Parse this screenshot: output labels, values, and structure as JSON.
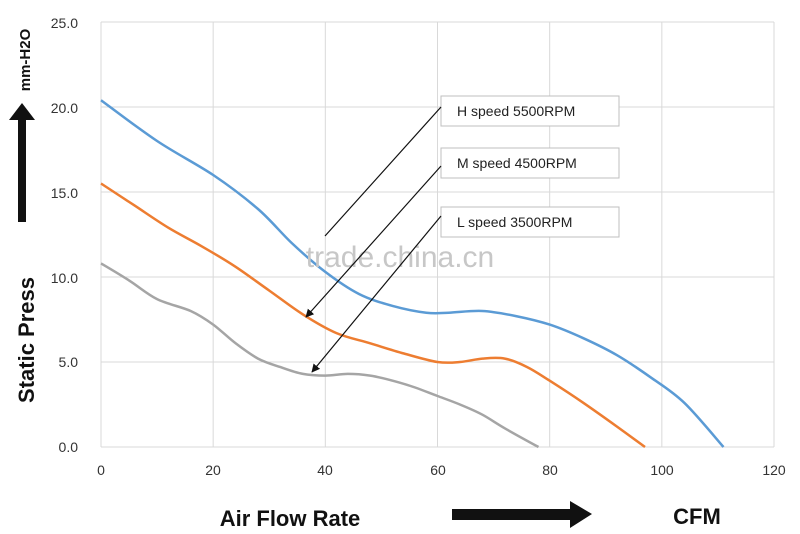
{
  "chart_data": {
    "type": "line",
    "title": "",
    "xlabel": "Air  Flow  Rate",
    "x_unit": "CFM",
    "ylabel": "Static  Press",
    "y_unit": "mm-H2O",
    "xlim": [
      0,
      120
    ],
    "ylim": [
      0,
      25
    ],
    "x_ticks": [
      "0",
      "20",
      "40",
      "60",
      "80",
      "100",
      "120"
    ],
    "y_ticks": [
      "0.0",
      "5.0",
      "10.0",
      "15.0",
      "20.0",
      "25.0"
    ],
    "grid": true,
    "series": [
      {
        "name": "H speed  5500RPM",
        "color": "#5b9bd5",
        "x": [
          0,
          10,
          20,
          28,
          34,
          40,
          46,
          52,
          58,
          62,
          68,
          74,
          80,
          86,
          92,
          98,
          104,
          111
        ],
        "y": [
          20.4,
          18.0,
          16.0,
          14.0,
          12.0,
          10.3,
          9.0,
          8.3,
          7.9,
          7.9,
          8.0,
          7.7,
          7.2,
          6.4,
          5.4,
          4.1,
          2.6,
          0.0
        ]
      },
      {
        "name": "M speed  4500RPM",
        "color": "#ed7d31",
        "x": [
          0,
          6,
          12,
          18,
          24,
          30,
          36,
          42,
          48,
          54,
          60,
          64,
          68,
          72,
          76,
          80,
          86,
          92,
          97
        ],
        "y": [
          15.5,
          14.2,
          12.9,
          11.8,
          10.6,
          9.2,
          7.8,
          6.7,
          6.1,
          5.5,
          5.0,
          5.0,
          5.2,
          5.2,
          4.7,
          3.9,
          2.6,
          1.2,
          0.0
        ]
      },
      {
        "name": "L speed  3500RPM",
        "color": "#a5a5a5",
        "x": [
          0,
          5,
          10,
          16,
          20,
          24,
          28,
          32,
          36,
          40,
          44,
          48,
          52,
          56,
          60,
          64,
          68,
          72,
          78
        ],
        "y": [
          10.8,
          9.8,
          8.7,
          8.0,
          7.2,
          6.1,
          5.2,
          4.7,
          4.3,
          4.2,
          4.3,
          4.2,
          3.9,
          3.5,
          3.0,
          2.5,
          1.9,
          1.1,
          0.0
        ]
      }
    ],
    "watermark": "trade.china.cn"
  }
}
